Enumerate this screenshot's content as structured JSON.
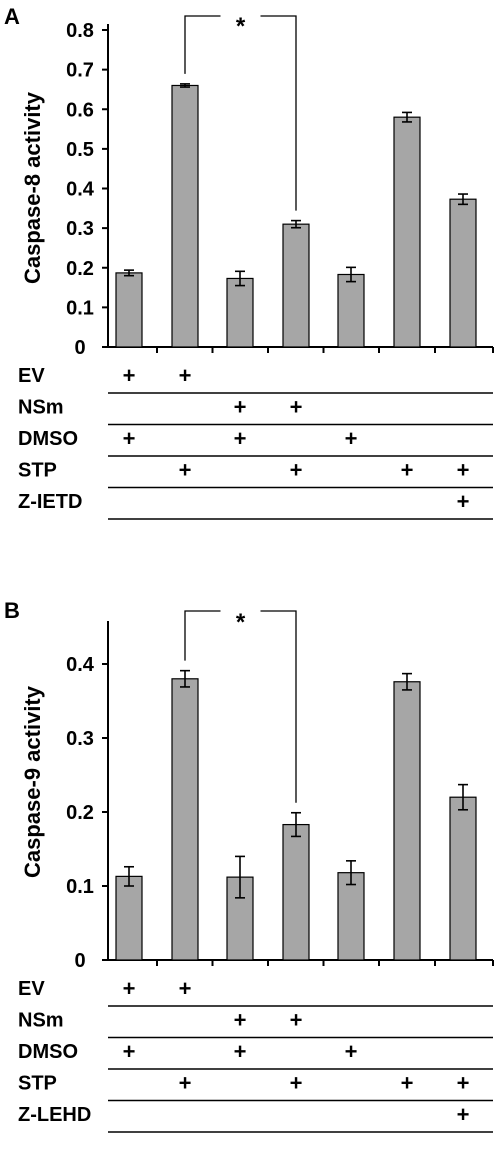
{
  "chart_data": [
    {
      "type": "bar",
      "panel": "A",
      "ylabel": "Caspase-8 activity",
      "ylim": [
        0,
        0.8
      ],
      "yticks": [
        0,
        0.1,
        0.2,
        0.3,
        0.4,
        0.5,
        0.6,
        0.7,
        0.8
      ],
      "ytick_labels": [
        "0",
        "0.1",
        "0.2",
        "0.3",
        "0.4",
        "0.5",
        "0.6",
        "0.7",
        "0.8"
      ],
      "values": [
        0.187,
        0.66,
        0.173,
        0.31,
        0.183,
        0.58,
        0.373
      ],
      "errors": [
        0.007,
        0.004,
        0.018,
        0.009,
        0.018,
        0.012,
        0.013
      ],
      "bar_color": "#a6a6a6",
      "significance": {
        "from": 1,
        "to": 3,
        "label": "*"
      },
      "conditions": [
        {
          "label": "EV",
          "marks": [
            "+",
            "+",
            "",
            "",
            "",
            "",
            ""
          ]
        },
        {
          "label": "NSm",
          "marks": [
            "",
            "",
            "+",
            "+",
            "",
            "",
            ""
          ]
        },
        {
          "label": "DMSO",
          "marks": [
            "+",
            "",
            "+",
            "",
            "+",
            "",
            ""
          ]
        },
        {
          "label": "STP",
          "marks": [
            "",
            "+",
            "",
            "+",
            "",
            "+",
            "+"
          ]
        },
        {
          "label": "Z-IETD",
          "marks": [
            "",
            "",
            "",
            "",
            "",
            "",
            "+"
          ]
        }
      ]
    },
    {
      "type": "bar",
      "panel": "B",
      "ylabel": "Caspase-9 activity",
      "ylim": [
        0,
        0.45
      ],
      "yticks": [
        0,
        0.1,
        0.2,
        0.3,
        0.4
      ],
      "ytick_labels": [
        "0",
        "0.1",
        "0.2",
        "0.3",
        "0.4"
      ],
      "values": [
        0.113,
        0.38,
        0.112,
        0.183,
        0.118,
        0.376,
        0.22
      ],
      "errors": [
        0.013,
        0.011,
        0.028,
        0.016,
        0.016,
        0.011,
        0.017
      ],
      "bar_color": "#a6a6a6",
      "significance": {
        "from": 1,
        "to": 3,
        "label": "*"
      },
      "conditions": [
        {
          "label": "EV",
          "marks": [
            "+",
            "+",
            "",
            "",
            "",
            "",
            ""
          ]
        },
        {
          "label": "NSm",
          "marks": [
            "",
            "",
            "+",
            "+",
            "",
            "",
            ""
          ]
        },
        {
          "label": "DMSO",
          "marks": [
            "+",
            "",
            "+",
            "",
            "+",
            "",
            ""
          ]
        },
        {
          "label": "STP",
          "marks": [
            "",
            "+",
            "",
            "+",
            "",
            "+",
            "+"
          ]
        },
        {
          "label": "Z-LEHD",
          "marks": [
            "",
            "",
            "",
            "",
            "",
            "",
            "+"
          ]
        }
      ]
    }
  ]
}
